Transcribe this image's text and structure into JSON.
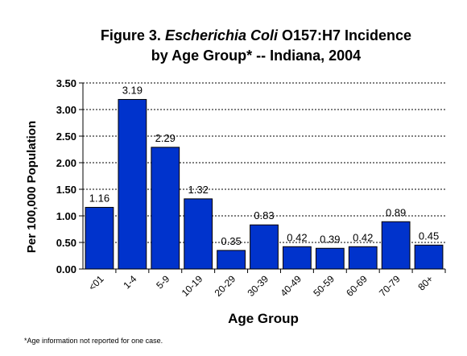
{
  "chart_data": {
    "type": "bar",
    "title_line1_prefix": "Figure 3. ",
    "title_line1_italic": "Escherichia Coli",
    "title_line1_suffix": " O157:H7 Incidence",
    "title_line2": "by Age Group* -- Indiana, 2004",
    "xlabel": "Age Group",
    "ylabel": "Per 100,000 Population",
    "footnote": "*Age information not reported for one case.",
    "categories": [
      "<01",
      "1-4",
      "5-9",
      "10-19",
      "20-29",
      "30-39",
      "40-49",
      "50-59",
      "60-69",
      "70-79",
      "80+"
    ],
    "values": [
      1.16,
      3.19,
      2.29,
      1.32,
      0.35,
      0.83,
      0.42,
      0.39,
      0.42,
      0.89,
      0.45
    ],
    "value_labels": [
      "1.16",
      "3.19",
      "2.29",
      "1.32",
      "0.35",
      "0.83",
      "0.42",
      "0.39",
      "0.42",
      "0.89",
      "0.45"
    ],
    "ylim": [
      0,
      3.5
    ],
    "yticks": [
      0,
      0.5,
      1.0,
      1.5,
      2.0,
      2.5,
      3.0,
      3.5
    ],
    "ytick_labels": [
      "0.00",
      "0.50",
      "1.00",
      "1.50",
      "2.00",
      "2.50",
      "3.00",
      "3.50"
    ],
    "grid": true,
    "grid_style": "dashed",
    "bar_color": "#0033cc",
    "bar_edge_color": "#000000"
  }
}
